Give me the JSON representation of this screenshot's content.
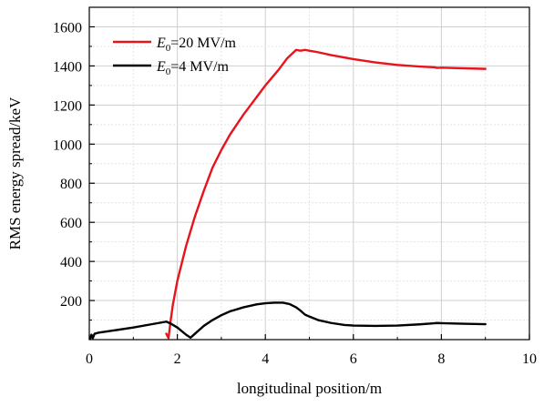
{
  "chart_data": {
    "type": "line",
    "title": "",
    "xlabel": "longitudinal position/m",
    "ylabel": "RMS energy spread/keV",
    "xlim": [
      0,
      10
    ],
    "ylim": [
      0,
      1700
    ],
    "xticks": [
      0,
      2,
      4,
      6,
      8,
      10
    ],
    "yticks": [
      200,
      400,
      600,
      800,
      1000,
      1200,
      1400,
      1600
    ],
    "grid": true,
    "legend_position": "top-left",
    "series": [
      {
        "name_main": "E",
        "name_sub": "0",
        "name_rest": "=20 MV/m",
        "color": "#e8141b",
        "points": [
          [
            1.75,
            30
          ],
          [
            1.8,
            8
          ],
          [
            1.85,
            100
          ],
          [
            1.9,
            180
          ],
          [
            2.0,
            300
          ],
          [
            2.2,
            480
          ],
          [
            2.4,
            630
          ],
          [
            2.6,
            760
          ],
          [
            2.8,
            880
          ],
          [
            3.0,
            970
          ],
          [
            3.2,
            1050
          ],
          [
            3.5,
            1150
          ],
          [
            3.8,
            1240
          ],
          [
            4.0,
            1300
          ],
          [
            4.3,
            1380
          ],
          [
            4.5,
            1440
          ],
          [
            4.7,
            1482
          ],
          [
            4.8,
            1478
          ],
          [
            4.9,
            1482
          ],
          [
            5.0,
            1478
          ],
          [
            5.2,
            1470
          ],
          [
            5.5,
            1455
          ],
          [
            6.0,
            1435
          ],
          [
            6.5,
            1418
          ],
          [
            7.0,
            1405
          ],
          [
            7.5,
            1397
          ],
          [
            7.85,
            1393
          ],
          [
            7.9,
            1390
          ],
          [
            8.0,
            1391
          ],
          [
            8.5,
            1388
          ],
          [
            9.0,
            1385
          ]
        ]
      },
      {
        "name_main": "E",
        "name_sub": "0",
        "name_rest": "=4 MV/m",
        "color": "#000000",
        "points": [
          [
            0.02,
            5
          ],
          [
            0.05,
            25
          ],
          [
            0.08,
            8
          ],
          [
            0.12,
            30
          ],
          [
            0.2,
            35
          ],
          [
            0.5,
            45
          ],
          [
            1.0,
            62
          ],
          [
            1.4,
            78
          ],
          [
            1.75,
            92
          ],
          [
            1.85,
            82
          ],
          [
            2.0,
            62
          ],
          [
            2.2,
            25
          ],
          [
            2.3,
            10
          ],
          [
            2.4,
            30
          ],
          [
            2.6,
            70
          ],
          [
            2.8,
            100
          ],
          [
            3.0,
            125
          ],
          [
            3.2,
            145
          ],
          [
            3.5,
            165
          ],
          [
            3.8,
            180
          ],
          [
            4.0,
            186
          ],
          [
            4.2,
            189
          ],
          [
            4.4,
            189
          ],
          [
            4.55,
            182
          ],
          [
            4.7,
            165
          ],
          [
            4.8,
            148
          ],
          [
            4.9,
            128
          ],
          [
            5.0,
            118
          ],
          [
            5.2,
            100
          ],
          [
            5.5,
            85
          ],
          [
            5.8,
            75
          ],
          [
            6.0,
            72
          ],
          [
            6.5,
            70
          ],
          [
            7.0,
            72
          ],
          [
            7.5,
            78
          ],
          [
            7.8,
            83
          ],
          [
            7.9,
            85
          ],
          [
            8.0,
            84
          ],
          [
            8.5,
            81
          ],
          [
            9.0,
            79
          ]
        ]
      }
    ]
  }
}
